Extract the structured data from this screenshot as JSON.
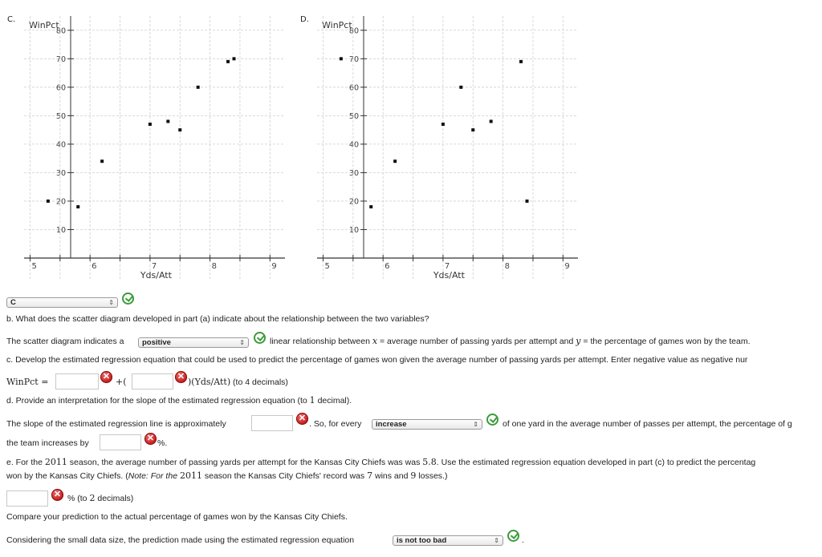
{
  "plots": [
    {
      "letter": "C.",
      "ylabel": "WinPct",
      "xlabel": "Yds/Att",
      "chart_data": {
        "type": "scatter",
        "x": [
          5.3,
          5.8,
          6.2,
          7.0,
          7.3,
          7.5,
          7.8,
          8.3,
          8.4
        ],
        "y": [
          20,
          18,
          34,
          47,
          48,
          45,
          60,
          69,
          70
        ],
        "xlim": [
          4.9,
          9.25
        ],
        "ylim": [
          0,
          85
        ],
        "xticks": [
          "5",
          "6",
          "7",
          "8",
          "9"
        ],
        "yticks": [
          "10",
          "20",
          "30",
          "40",
          "50",
          "60",
          "70",
          "80"
        ],
        "xlabel": "Yds/Att",
        "ylabel": "WinPct"
      }
    },
    {
      "letter": "D.",
      "ylabel": "WinPct",
      "xlabel": "Yds/Att",
      "chart_data": {
        "type": "scatter",
        "x": [
          5.3,
          5.8,
          6.2,
          7.0,
          7.3,
          7.5,
          7.8,
          8.3,
          8.4
        ],
        "y": [
          70,
          18,
          34,
          47,
          60,
          45,
          48,
          69,
          20
        ],
        "xlim": [
          4.9,
          9.25
        ],
        "ylim": [
          0,
          85
        ],
        "xticks": [
          "5",
          "6",
          "7",
          "8",
          "9"
        ],
        "yticks": [
          "10",
          "20",
          "30",
          "40",
          "50",
          "60",
          "70",
          "80"
        ],
        "xlabel": "Yds/Att",
        "ylabel": "WinPct"
      }
    }
  ],
  "answer_select": {
    "value": "C"
  },
  "part_b": {
    "question": "b. What does the scatter diagram developed in part (a) indicate about the relationship between the two variables?",
    "prefix": "The scatter diagram indicates a",
    "select_value": "positive",
    "suffix_1": "linear relationship between",
    "x_var": "x",
    "suffix_2": "= average number of passing yards per attempt and",
    "y_var": "y",
    "suffix_3": "= the percentage of games won by the team."
  },
  "part_c": {
    "question": "c. Develop the estimated regression equation that could be used to predict the percentage of games won given the average number of passing yards per attempt. Enter negative value as negative nur",
    "lhs": "WinPct =",
    "plus": "+(",
    "term": ")(Yds/Att)",
    "note": "(to 4 decimals)"
  },
  "part_d": {
    "question_pre": "d. Provide an interpretation for the slope of the estimated regression equation (to",
    "question_num": "1",
    "question_post": "decimal).",
    "slope_pre": "The slope of the estimated regression line is approximately",
    "slope_post": ". So, for every",
    "select_value": "increase",
    "tail": "of one yard in the average number of passes per attempt, the percentage of g",
    "line2_pre": "the team increases by",
    "line2_post": "%."
  },
  "part_e": {
    "q_a": "e. For the",
    "year1": "2011",
    "q_b": "season, the average number of passing yards per attempt for the Kansas City Chiefs was was",
    "value": "5.8",
    "q_c": ". Use the estimated regression equation developed in part (c) to predict the percentag",
    "q2_a": "won by the Kansas City Chiefs. (",
    "note_label": "Note:",
    "q2_b": "For the",
    "year2": "2011",
    "q2_c": "season the Kansas City Chiefs' record was",
    "wins": "7",
    "q2_d": "wins and",
    "losses": "9",
    "q2_e": "losses.)",
    "unit": "% (to",
    "decimals": "2",
    "decimals_word": "decimals)",
    "compare": "Compare your prediction to the actual percentage of games won by the Kansas City Chiefs.",
    "final_pre": "Considering the small data size, the prediction made using the estimated regression equation",
    "final_select": "is not too bad",
    "final_post": "."
  },
  "icons": {
    "select_arrow": "⇕",
    "wrong_mark": "✕"
  }
}
